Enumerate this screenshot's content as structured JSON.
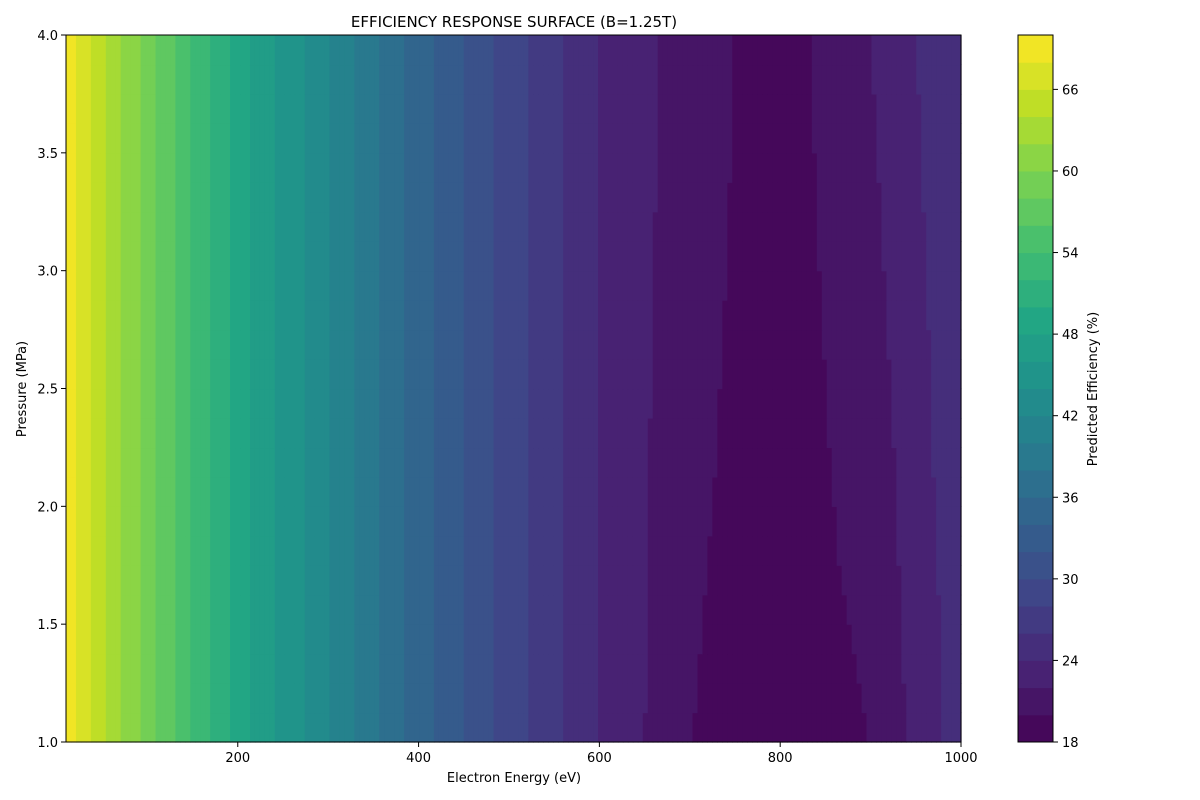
{
  "chart_data": {
    "type": "heatmap",
    "subtype": "filled-contour",
    "title": "EFFICIENCY RESPONSE SURFACE (B=1.25T)",
    "xlabel": "Electron Energy (eV)",
    "ylabel": "Pressure (MPa)",
    "colorbar_label": "Predicted Efficiency (%)",
    "colormap": "viridis",
    "xlim": [
      10,
      1000
    ],
    "ylim": [
      1.0,
      4.0
    ],
    "x_ticks": [
      200,
      400,
      600,
      800,
      1000
    ],
    "x_tick_labels": [
      "200",
      "400",
      "600",
      "800",
      "1000"
    ],
    "y_ticks": [
      1.0,
      1.5,
      2.0,
      2.5,
      3.0,
      3.5,
      4.0
    ],
    "y_tick_labels": [
      "1.0",
      "1.5",
      "2.0",
      "2.5",
      "3.0",
      "3.5",
      "4.0"
    ],
    "colorbar_range": [
      18,
      70
    ],
    "contour_levels": [
      18,
      20,
      22,
      24,
      26,
      28,
      30,
      32,
      34,
      36,
      38,
      40,
      42,
      44,
      46,
      48,
      50,
      52,
      54,
      56,
      58,
      60,
      62,
      64,
      66,
      68,
      70
    ],
    "colorbar_ticks": [
      18,
      24,
      30,
      36,
      42,
      48,
      54,
      60,
      66
    ],
    "colorbar_tick_labels": [
      "18",
      "24",
      "30",
      "36",
      "42",
      "48",
      "54",
      "60",
      "66"
    ],
    "x_grid": [
      10,
      100,
      200,
      300,
      400,
      500,
      600,
      700,
      800,
      900,
      1000
    ],
    "y_grid": [
      1.0,
      4.0
    ],
    "z_values": [
      [
        69,
        59,
        49,
        42,
        35,
        29,
        24,
        20,
        19,
        20,
        25
      ],
      [
        69,
        59,
        49,
        42,
        35,
        29,
        24,
        21,
        19,
        22,
        26
      ]
    ],
    "grid": false,
    "legend": "colorbar-right"
  }
}
